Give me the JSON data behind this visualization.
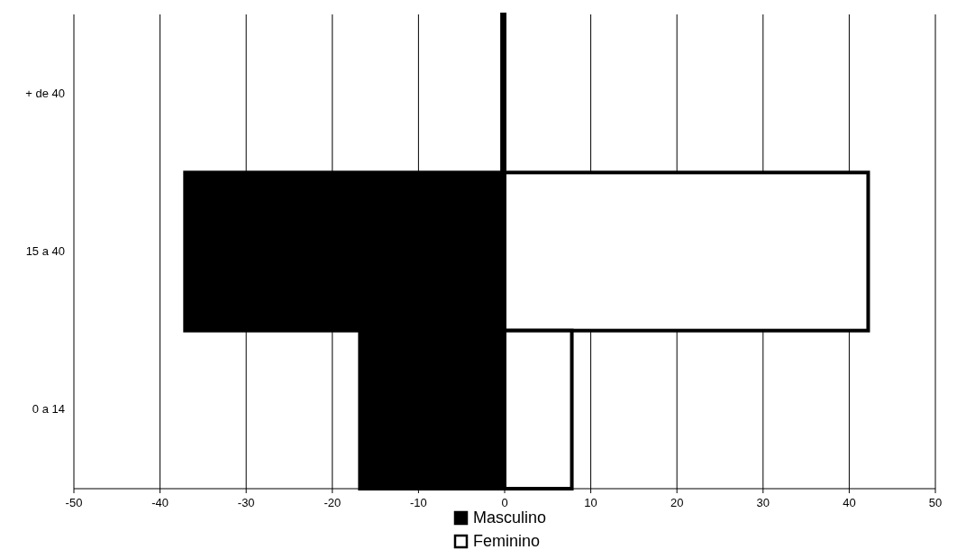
{
  "chart_data": {
    "type": "bar",
    "orientation": "horizontal",
    "stacked": true,
    "categories": [
      "+ de 40",
      "15 a 40",
      "0 a 14"
    ],
    "series": [
      {
        "name": "Masculino",
        "color": "#000000",
        "values": [
          -0.3,
          -37.1,
          -16.8
        ]
      },
      {
        "name": "Feminino",
        "color": "#ffffff",
        "values": [
          0,
          42.2,
          7.8
        ]
      }
    ],
    "xlim": [
      -50,
      50
    ],
    "xticks": [
      -50,
      -40,
      -30,
      -20,
      -10,
      0,
      10,
      20,
      30,
      40,
      50
    ],
    "grid": "x",
    "legend": "bottom"
  }
}
